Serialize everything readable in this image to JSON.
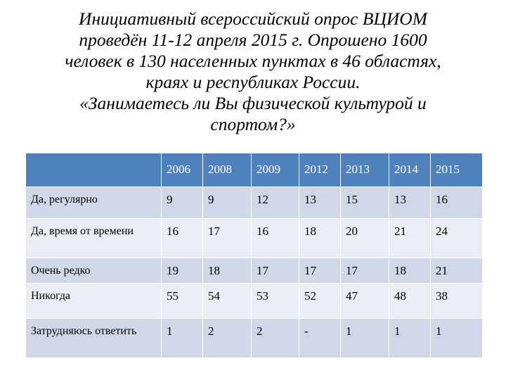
{
  "title": {
    "lines": [
      "Инициативный всероссийский опрос ВЦИОМ",
      "проведён 11-12 апреля 2015 г. Опрошено 1600",
      "человек в 130 населенных пунктах в 46 областях,",
      "краях и республиках России.",
      "«Занимаетесь ли Вы физической культурой и",
      "спортом?»"
    ]
  },
  "table": {
    "corner_label": "",
    "years": [
      "2006",
      "2008",
      "2009",
      "2012",
      "2013",
      "2014",
      "2015"
    ],
    "rows": [
      {
        "label": "Да, регулярно",
        "values": [
          "9",
          "9",
          "12",
          "13",
          "15",
          "13",
          "16"
        ]
      },
      {
        "label": "Да, время от времени",
        "values": [
          "16",
          "17",
          "16",
          "18",
          "20",
          "21",
          "24"
        ]
      },
      {
        "label": "Очень редко",
        "values": [
          "19",
          "18",
          "17",
          "17",
          "17",
          "18",
          "21"
        ]
      },
      {
        "label": "Никогда",
        "values": [
          "55",
          "54",
          "53",
          "52",
          "47",
          "48",
          "38"
        ]
      },
      {
        "label": "Затрудняюсь ответить",
        "values": [
          "1",
          "2",
          "2",
          "-",
          "1",
          "1",
          "1"
        ]
      }
    ]
  },
  "colors": {
    "header_bg": "#4f81bd",
    "row_odd_bg": "#d0d8e8",
    "row_even_bg": "#e9edf4"
  }
}
